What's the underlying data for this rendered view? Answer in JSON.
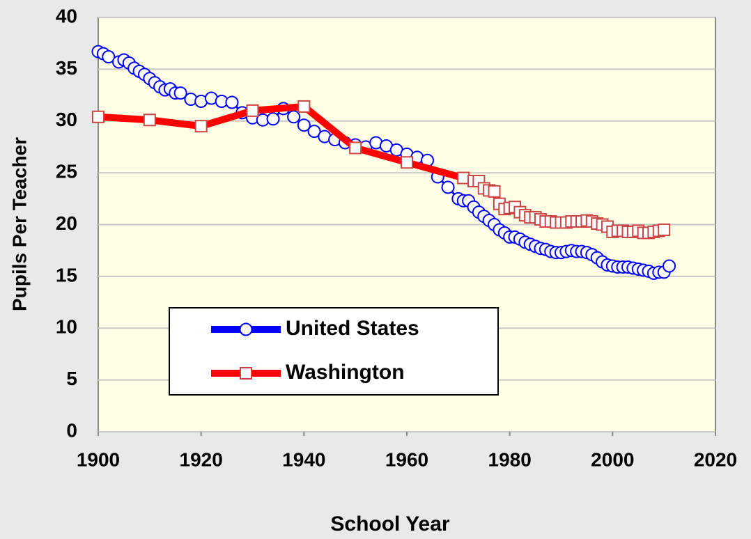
{
  "chart_data": {
    "type": "line",
    "xlabel": "School Year",
    "ylabel": "Pupils Per Teacher",
    "xlim": [
      1900,
      2020
    ],
    "xticks": [
      1900,
      1920,
      1940,
      1960,
      1980,
      2000,
      2020
    ],
    "ylim": [
      0,
      40
    ],
    "yticks": [
      0,
      5,
      10,
      15,
      20,
      25,
      30,
      35,
      40
    ],
    "grid": true,
    "legend": "lower left",
    "series": [
      {
        "name": "United States",
        "color": "#0000ff",
        "x": [
          1900,
          1901,
          1902,
          1904,
          1905,
          1906,
          1907,
          1908,
          1909,
          1910,
          1911,
          1912,
          1913,
          1914,
          1915,
          1916,
          1918,
          1920,
          1922,
          1924,
          1926,
          1928,
          1930,
          1932,
          1934,
          1936,
          1938,
          1940,
          1942,
          1944,
          1946,
          1948,
          1950,
          1952,
          1954,
          1956,
          1958,
          1960,
          1962,
          1964,
          1966,
          1968,
          1970,
          1971,
          1972,
          1973,
          1974,
          1975,
          1976,
          1977,
          1978,
          1979,
          1980,
          1981,
          1982,
          1983,
          1984,
          1985,
          1986,
          1987,
          1988,
          1989,
          1990,
          1991,
          1992,
          1993,
          1994,
          1995,
          1996,
          1997,
          1998,
          1999,
          2000,
          2001,
          2002,
          2003,
          2004,
          2005,
          2006,
          2007,
          2008,
          2009,
          2010,
          2011
        ],
        "values": [
          36.7,
          36.5,
          36.2,
          35.7,
          35.9,
          35.6,
          35.1,
          34.8,
          34.5,
          34.1,
          33.7,
          33.3,
          33.0,
          33.1,
          32.7,
          32.7,
          32.1,
          31.9,
          32.2,
          31.9,
          31.8,
          30.8,
          30.3,
          30.1,
          30.2,
          31.2,
          30.4,
          29.6,
          29.0,
          28.5,
          28.2,
          27.9,
          27.7,
          27.5,
          27.9,
          27.6,
          27.2,
          26.8,
          26.5,
          26.2,
          24.6,
          23.6,
          22.5,
          22.3,
          22.3,
          21.7,
          21.2,
          20.8,
          20.4,
          20.0,
          19.5,
          19.2,
          18.8,
          18.8,
          18.6,
          18.3,
          18.1,
          17.9,
          17.7,
          17.6,
          17.4,
          17.3,
          17.3,
          17.4,
          17.5,
          17.4,
          17.4,
          17.3,
          17.1,
          16.8,
          16.4,
          16.1,
          16.0,
          15.9,
          15.9,
          15.9,
          15.8,
          15.7,
          15.6,
          15.5,
          15.3,
          15.4,
          15.4,
          16.0
        ]
      },
      {
        "name": "Washington",
        "color": "#ff0000",
        "x": [
          1900,
          1910,
          1920,
          1930,
          1940,
          1950,
          1960,
          1971,
          1973,
          1974,
          1975,
          1976,
          1977,
          1978,
          1979,
          1980,
          1981,
          1982,
          1983,
          1984,
          1985,
          1986,
          1987,
          1988,
          1989,
          1990,
          1991,
          1992,
          1993,
          1994,
          1995,
          1996,
          1997,
          1998,
          1999,
          2000,
          2001,
          2002,
          2003,
          2004,
          2005,
          2006,
          2007,
          2008,
          2009,
          2010
        ],
        "values": [
          30.4,
          30.1,
          29.5,
          31.0,
          31.4,
          27.4,
          26.0,
          24.5,
          24.2,
          24.2,
          23.5,
          23.3,
          23.2,
          22.0,
          21.5,
          21.6,
          21.7,
          21.2,
          20.9,
          20.7,
          20.7,
          20.5,
          20.3,
          20.3,
          20.2,
          20.2,
          20.2,
          20.3,
          20.3,
          20.3,
          20.4,
          20.3,
          20.1,
          20.0,
          19.8,
          19.3,
          19.4,
          19.4,
          19.3,
          19.3,
          19.4,
          19.2,
          19.2,
          19.3,
          19.4,
          19.5
        ]
      }
    ]
  }
}
